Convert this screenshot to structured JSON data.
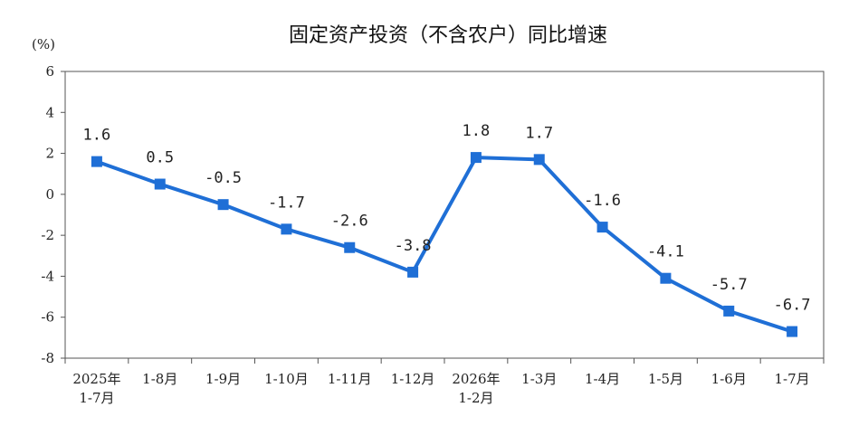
{
  "chart_data": {
    "type": "line",
    "title": "固定资产投资（不含农户）同比增速",
    "unit": "(%)",
    "ylim": [
      -8,
      6
    ],
    "yticks": [
      "6",
      "4",
      "2",
      "0",
      "-2",
      "-4",
      "-6",
      "-8"
    ],
    "categories": [
      [
        "2025年",
        "1-7月"
      ],
      [
        "1-8月"
      ],
      [
        "1-9月"
      ],
      [
        "1-10月"
      ],
      [
        "1-11月"
      ],
      [
        "1-12月"
      ],
      [
        "2026年",
        "1-2月"
      ],
      [
        "1-3月"
      ],
      [
        "1-4月"
      ],
      [
        "1-5月"
      ],
      [
        "1-6月"
      ],
      [
        "1-7月"
      ]
    ],
    "values": [
      1.6,
      0.5,
      -0.5,
      -1.7,
      -2.6,
      -3.8,
      1.8,
      1.7,
      -1.6,
      -4.1,
      -5.7,
      -6.7
    ],
    "data_labels": [
      "1.6",
      "0.5",
      "-0.5",
      "-1.7",
      "-2.6",
      "-3.8",
      "1.8",
      "1.7",
      "-1.6",
      "-4.1",
      "-5.7",
      "-6.7"
    ],
    "line_color": "#1f6fd6",
    "marker": "square",
    "grid": false
  }
}
